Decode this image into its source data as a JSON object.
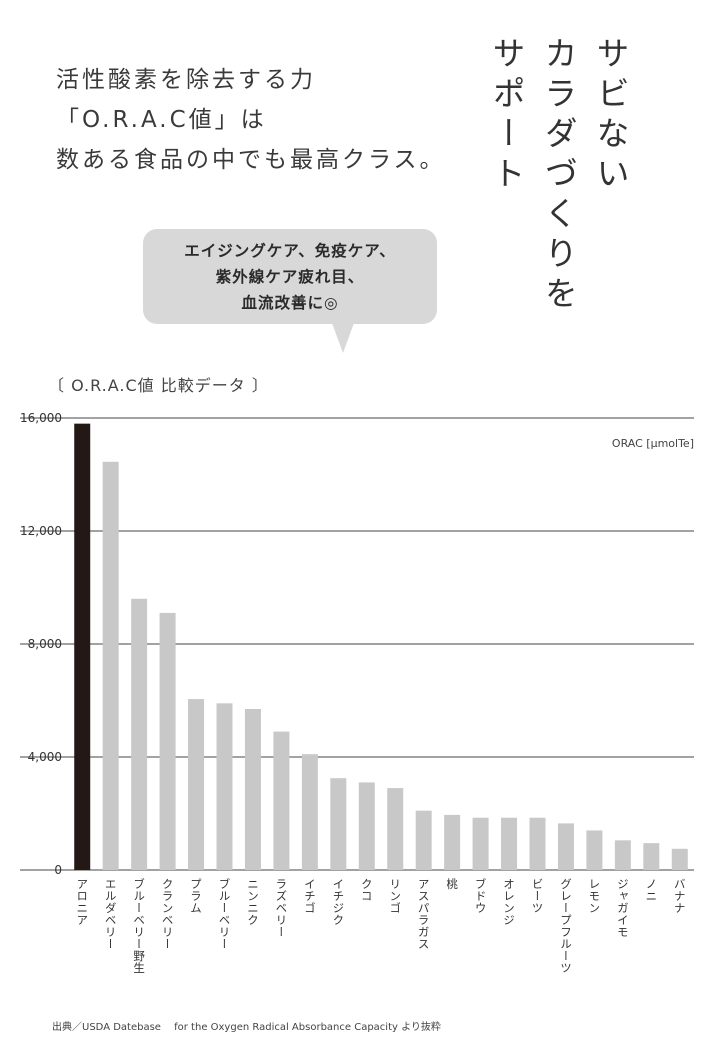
{
  "intro_lines": [
    "活性酸素を除去する力",
    "「O.R.A.C値」は",
    "数ある食品の中でも最高クラス。"
  ],
  "vertical_title": [
    "サビない",
    "カラダづくりを",
    "サポート"
  ],
  "bubble_lines": [
    "エイジングケア、免疫ケア、",
    "紫外線ケア疲れ目、",
    "血流改善に◎"
  ],
  "chart_heading": "〔 O.R.A.C値 比較データ 〕",
  "source": "出典／USDA Datebase　 for the Oxygen Radical Absorbance Capacity より抜粋",
  "colors": {
    "highlight": "#231815",
    "bar": "#c8c8c8",
    "grid": "#444444"
  },
  "chart_data": {
    "type": "bar",
    "unit_label": "ORAC [μmolTe]",
    "categories": [
      "アロニア",
      "エルダベリー",
      "ブルーベリー野生",
      "クランベリー",
      "プラム",
      "ブルーベリー",
      "ニンニク",
      "ラズベリー",
      "イチゴ",
      "イチジク",
      "クコ",
      "リンゴ",
      "アスパラガス",
      "桃",
      "ブドウ",
      "オレンジ",
      "ビーツ",
      "グレープフルーツ",
      "レモン",
      "ジャガイモ",
      "ノニ",
      "バナナ"
    ],
    "values": [
      15800,
      14450,
      9600,
      9100,
      6050,
      5900,
      5700,
      4900,
      4100,
      3250,
      3100,
      2900,
      2100,
      1950,
      1850,
      1850,
      1850,
      1650,
      1400,
      1050,
      950,
      750
    ],
    "highlight_index": 0,
    "ylim": [
      0,
      16000
    ],
    "yticks": [
      0,
      4000,
      8000,
      12000,
      16000
    ],
    "ytick_labels": [
      "0",
      "4,000",
      "8,000",
      "12,000",
      "16,000"
    ],
    "grid": true
  }
}
